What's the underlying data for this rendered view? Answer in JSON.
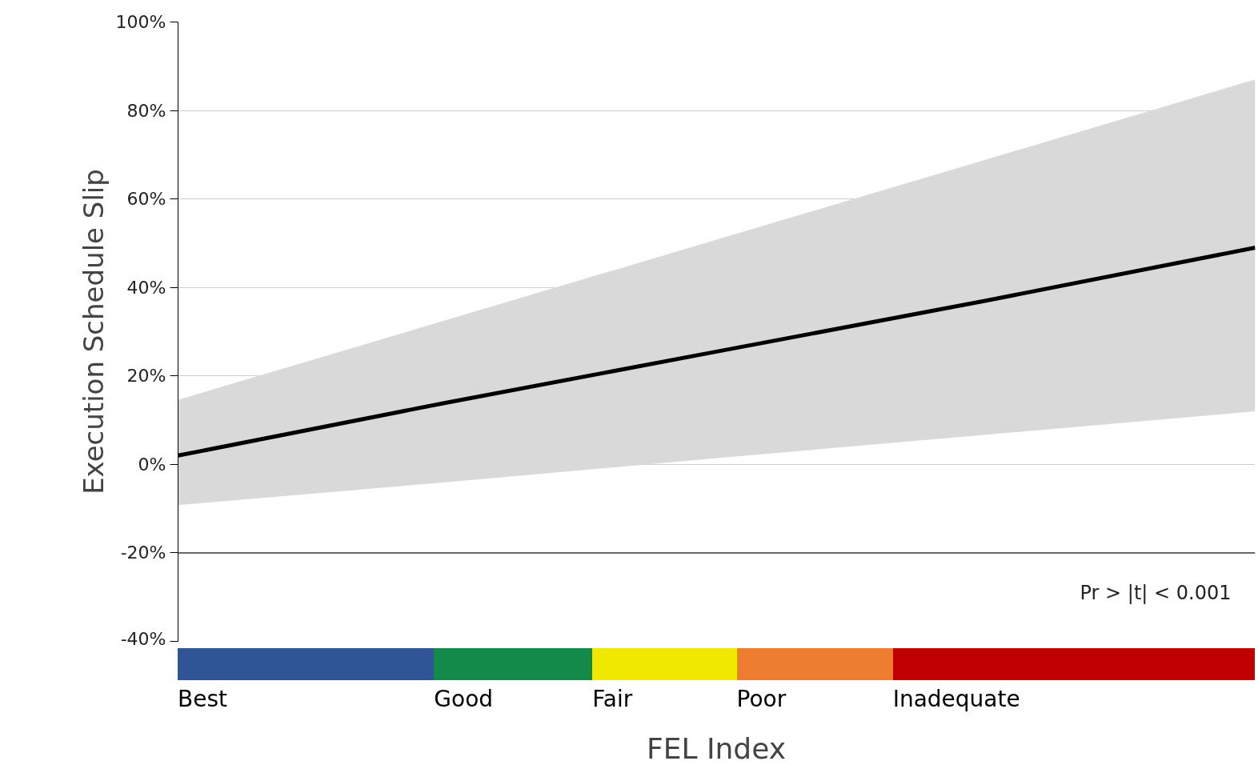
{
  "chart_data": {
    "type": "line",
    "ylabel": "Execution Schedule Slip",
    "xlabel": "FEL Index",
    "categories": [
      null,
      null,
      null,
      null,
      null
    ],
    "tick_labels": "y",
    "series": [
      {
        "color": "#000000",
        "values": [
          2,
          14,
          25.5,
          37,
          49
        ],
        "lower": [
          -9.2,
          -4,
          1.4,
          6.7,
          12
        ],
        "upper": [
          14.6,
          32.7,
          50.8,
          68.9,
          87
        ]
      }
    ],
    "ylim": [
      -40,
      100
    ],
    "yticks": [
      {
        "value": -40,
        "label": "-40%"
      },
      {
        "value": -20,
        "label": "-20%"
      },
      {
        "value": 0,
        "label": "0%"
      },
      {
        "value": 20,
        "label": "20%"
      },
      {
        "value": 40,
        "label": "40%"
      },
      {
        "value": 60,
        "label": "60%"
      },
      {
        "value": 80,
        "label": "80%"
      },
      {
        "value": 100,
        "label": "100%"
      }
    ],
    "grid": "y",
    "marker": "none",
    "line_style": "solid",
    "ref_lines": [
      {
        "axis": "y",
        "value": -20,
        "color": "#404040"
      }
    ],
    "annotations": [
      "Best",
      "Good",
      "Fair",
      "Poor",
      "Inadequate",
      "Pr > |t| < 0.001"
    ]
  }
}
